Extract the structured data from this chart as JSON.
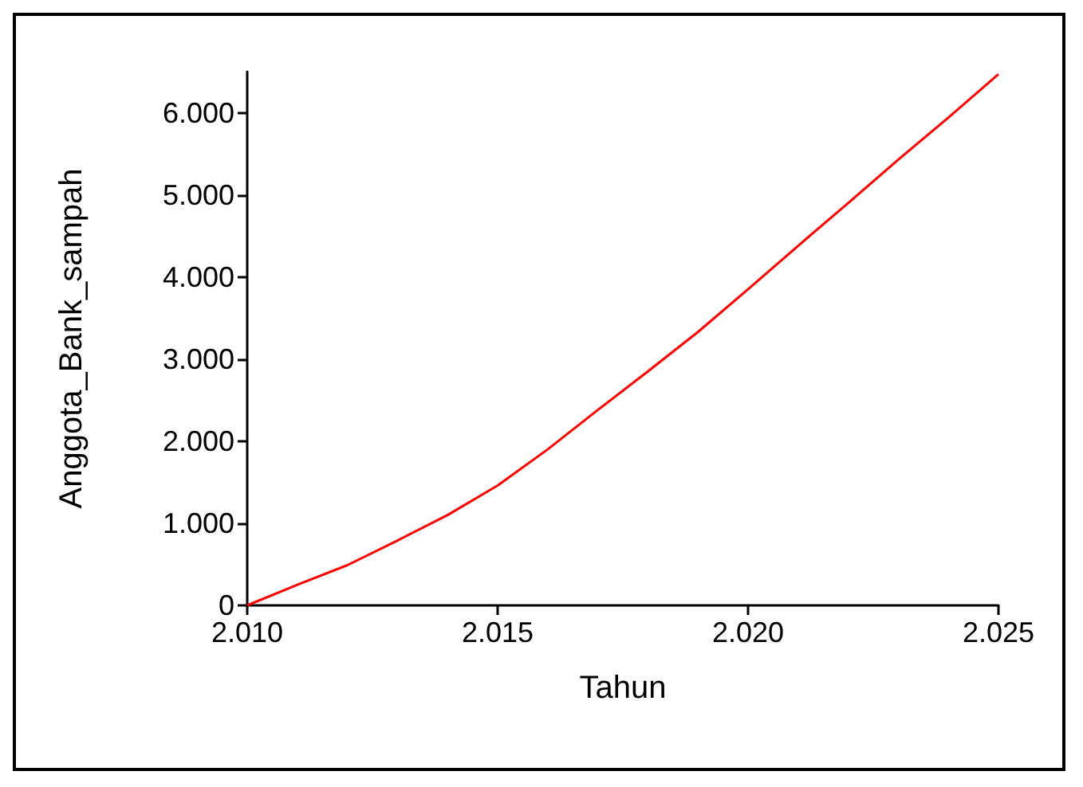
{
  "chart_data": {
    "type": "line",
    "xlabel": "Tahun",
    "ylabel": "Anggota_Bank_sampah",
    "x": [
      2010,
      2011,
      2012,
      2013,
      2014,
      2015,
      2016,
      2017,
      2018,
      2019,
      2020,
      2021,
      2022,
      2023,
      2024,
      2025
    ],
    "series": [
      {
        "color": "#ff0000",
        "values": [
          0,
          250,
          490,
          790,
          1100,
          1460,
          1900,
          2380,
          2850,
          3330,
          3850,
          4380,
          4900,
          5430,
          5940,
          6470
        ]
      }
    ],
    "xlim": [
      2010,
      2025
    ],
    "xticks": [
      {
        "value": 2010,
        "label": "2.010"
      },
      {
        "value": 2015,
        "label": "2.015"
      },
      {
        "value": 2020,
        "label": "2.020"
      },
      {
        "value": 2025,
        "label": "2.025"
      }
    ],
    "ylim": [
      0,
      6500
    ],
    "yticks": [
      0,
      {
        "value": 1000,
        "label": "1.000"
      },
      {
        "value": 2000,
        "label": "2.000"
      },
      {
        "value": 3000,
        "label": "3.000"
      },
      {
        "value": 4000,
        "label": "4.000"
      },
      {
        "value": 5000,
        "label": "5.000"
      },
      {
        "value": 6000,
        "label": "6.000"
      }
    ],
    "grid": false,
    "marker": "none",
    "line_style": "solid"
  }
}
